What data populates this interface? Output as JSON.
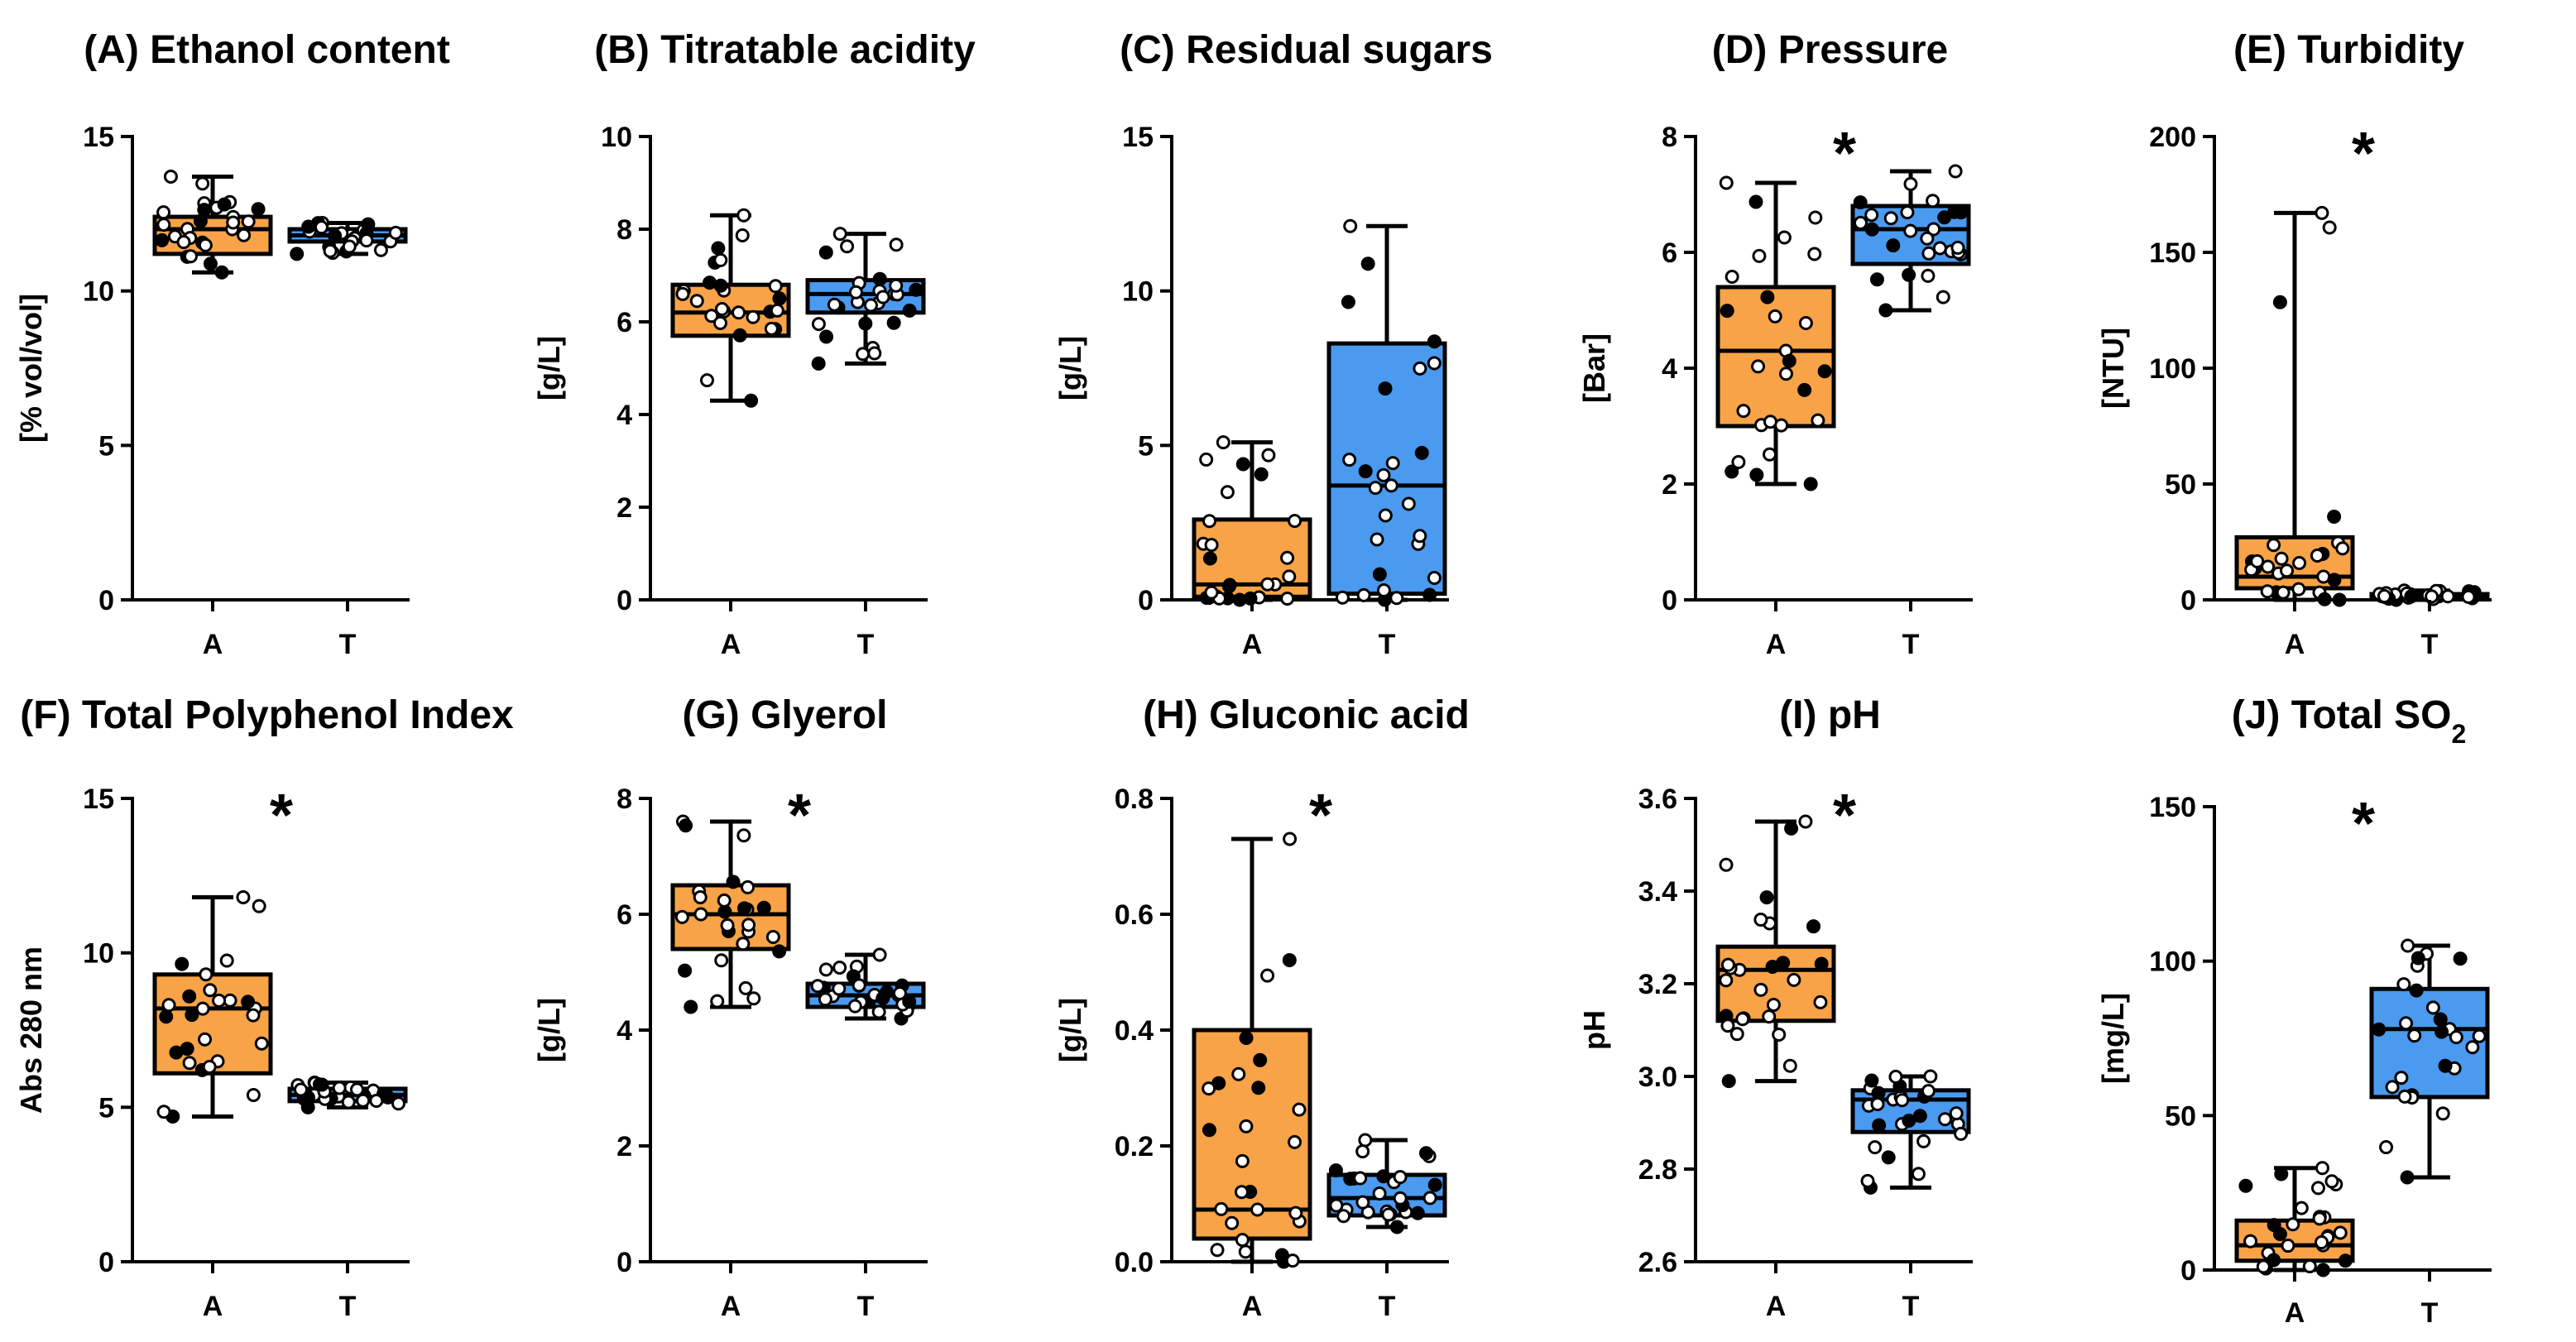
{
  "colors": {
    "A": "#F8A347",
    "T": "#4A9AF0",
    "ink": "#000000"
  },
  "chart_data": [
    {
      "type": "box",
      "title": "(A) Ethanol content",
      "ylabel": "[% vol/vol]",
      "ylim": [
        0,
        15
      ],
      "yticks": [
        0,
        5,
        10,
        15
      ],
      "tick_labels": [
        "0",
        "5",
        "10",
        "15"
      ],
      "categories": [
        "A",
        "T"
      ],
      "significant": "",
      "boxes": [
        {
          "min": 10.6,
          "q1": 11.2,
          "median": 12.0,
          "q3": 12.4,
          "max": 13.7
        },
        {
          "min": 11.2,
          "q1": 11.6,
          "median": 11.8,
          "q3": 12.0,
          "max": 12.2
        }
      ]
    },
    {
      "type": "box",
      "title": "(B) Titratable acidity",
      "ylabel": "[g/L]",
      "ylim": [
        0,
        10
      ],
      "yticks": [
        0,
        2,
        4,
        6,
        8,
        10
      ],
      "tick_labels": [
        "0",
        "2",
        "4",
        "6",
        "8",
        "10"
      ],
      "categories": [
        "A",
        "T"
      ],
      "significant": "",
      "boxes": [
        {
          "min": 4.3,
          "q1": 5.7,
          "median": 6.2,
          "q3": 6.8,
          "max": 8.3
        },
        {
          "min": 5.1,
          "q1": 6.2,
          "median": 6.6,
          "q3": 6.9,
          "max": 7.9
        }
      ]
    },
    {
      "type": "box",
      "title": "(C) Residual sugars",
      "ylabel": "[g/L]",
      "ylim": [
        0,
        15
      ],
      "yticks": [
        0,
        5,
        10,
        15
      ],
      "tick_labels": [
        "0",
        "5",
        "10",
        "15"
      ],
      "categories": [
        "A",
        "T"
      ],
      "significant": "",
      "boxes": [
        {
          "min": 0.0,
          "q1": 0.1,
          "median": 0.5,
          "q3": 2.6,
          "max": 5.1
        },
        {
          "min": 0.0,
          "q1": 0.2,
          "median": 3.7,
          "q3": 8.3,
          "max": 12.1
        }
      ]
    },
    {
      "type": "box",
      "title": "(D) Pressure",
      "ylabel": "[Bar]",
      "ylim": [
        0,
        8
      ],
      "yticks": [
        0,
        2,
        4,
        6,
        8
      ],
      "tick_labels": [
        "0",
        "2",
        "4",
        "6",
        "8"
      ],
      "categories": [
        "A",
        "T"
      ],
      "significant": "*",
      "boxes": [
        {
          "min": 2.0,
          "q1": 3.0,
          "median": 4.3,
          "q3": 5.4,
          "max": 7.2
        },
        {
          "min": 5.0,
          "q1": 5.8,
          "median": 6.4,
          "q3": 6.8,
          "max": 7.4
        }
      ]
    },
    {
      "type": "box",
      "title": "(E) Turbidity",
      "ylabel": "[NTU]",
      "ylim": [
        0,
        200
      ],
      "yticks": [
        0,
        50,
        100,
        150,
        200
      ],
      "tick_labels": [
        "0",
        "50",
        "100",
        "150",
        "200"
      ],
      "categories": [
        "A",
        "T"
      ],
      "significant": "*",
      "boxes": [
        {
          "min": 0,
          "q1": 5,
          "median": 10,
          "q3": 27,
          "max": 167
        },
        {
          "min": 0,
          "q1": 0.5,
          "median": 1.5,
          "q3": 2.5,
          "max": 4
        }
      ]
    },
    {
      "type": "box",
      "title": "(F) Total Polyphenol Index",
      "ylabel": "Abs 280 nm",
      "ylim": [
        0,
        15
      ],
      "yticks": [
        0,
        5,
        10,
        15
      ],
      "tick_labels": [
        "0",
        "5",
        "10",
        "15"
      ],
      "categories": [
        "A",
        "T"
      ],
      "significant": "*",
      "boxes": [
        {
          "min": 4.7,
          "q1": 6.1,
          "median": 8.2,
          "q3": 9.3,
          "max": 11.8
        },
        {
          "min": 5.0,
          "q1": 5.2,
          "median": 5.4,
          "q3": 5.6,
          "max": 5.8
        }
      ]
    },
    {
      "type": "box",
      "title": "(G) Glyerol",
      "ylabel": "[g/L]",
      "ylim": [
        0,
        8
      ],
      "yticks": [
        0,
        2,
        4,
        6,
        8
      ],
      "tick_labels": [
        "0",
        "2",
        "4",
        "6",
        "8"
      ],
      "categories": [
        "A",
        "T"
      ],
      "significant": "*",
      "boxes": [
        {
          "min": 4.4,
          "q1": 5.4,
          "median": 6.0,
          "q3": 6.5,
          "max": 7.6
        },
        {
          "min": 4.2,
          "q1": 4.4,
          "median": 4.6,
          "q3": 4.8,
          "max": 5.3
        }
      ]
    },
    {
      "type": "box",
      "title": "(H) Gluconic acid",
      "ylabel": "[g/L]",
      "ylim": [
        0,
        0.8
      ],
      "yticks": [
        0,
        0.2,
        0.4,
        0.6,
        0.8
      ],
      "tick_labels": [
        "0.0",
        "0.2",
        "0.4",
        "0.6",
        "0.8"
      ],
      "categories": [
        "A",
        "T"
      ],
      "significant": "*",
      "boxes": [
        {
          "min": 0.0,
          "q1": 0.04,
          "median": 0.09,
          "q3": 0.4,
          "max": 0.73
        },
        {
          "min": 0.06,
          "q1": 0.08,
          "median": 0.11,
          "q3": 0.15,
          "max": 0.21
        }
      ]
    },
    {
      "type": "box",
      "title": "(I) pH",
      "ylabel": "pH",
      "ylim": [
        2.6,
        3.6
      ],
      "yticks": [
        2.6,
        2.8,
        3.0,
        3.2,
        3.4,
        3.6
      ],
      "tick_labels": [
        "2.6",
        "2.8",
        "3.0",
        "3.2",
        "3.4",
        "3.6"
      ],
      "categories": [
        "A",
        "T"
      ],
      "significant": "*",
      "boxes": [
        {
          "min": 2.99,
          "q1": 3.12,
          "median": 3.23,
          "q3": 3.28,
          "max": 3.55
        },
        {
          "min": 2.76,
          "q1": 2.88,
          "median": 2.95,
          "q3": 2.97,
          "max": 3.0
        }
      ]
    },
    {
      "type": "box",
      "title": "(J) Total SO",
      "title_subscript": "2",
      "ylabel": "[mg/L]",
      "ylim": [
        0,
        150
      ],
      "yticks": [
        0,
        50,
        100,
        150
      ],
      "tick_labels": [
        "0",
        "50",
        "100",
        "150"
      ],
      "categories": [
        "A",
        "T"
      ],
      "significant": "*",
      "boxes": [
        {
          "min": 0,
          "q1": 3,
          "median": 8,
          "q3": 16,
          "max": 33
        },
        {
          "min": 30,
          "q1": 56,
          "median": 78,
          "q3": 91,
          "max": 105
        }
      ]
    }
  ]
}
